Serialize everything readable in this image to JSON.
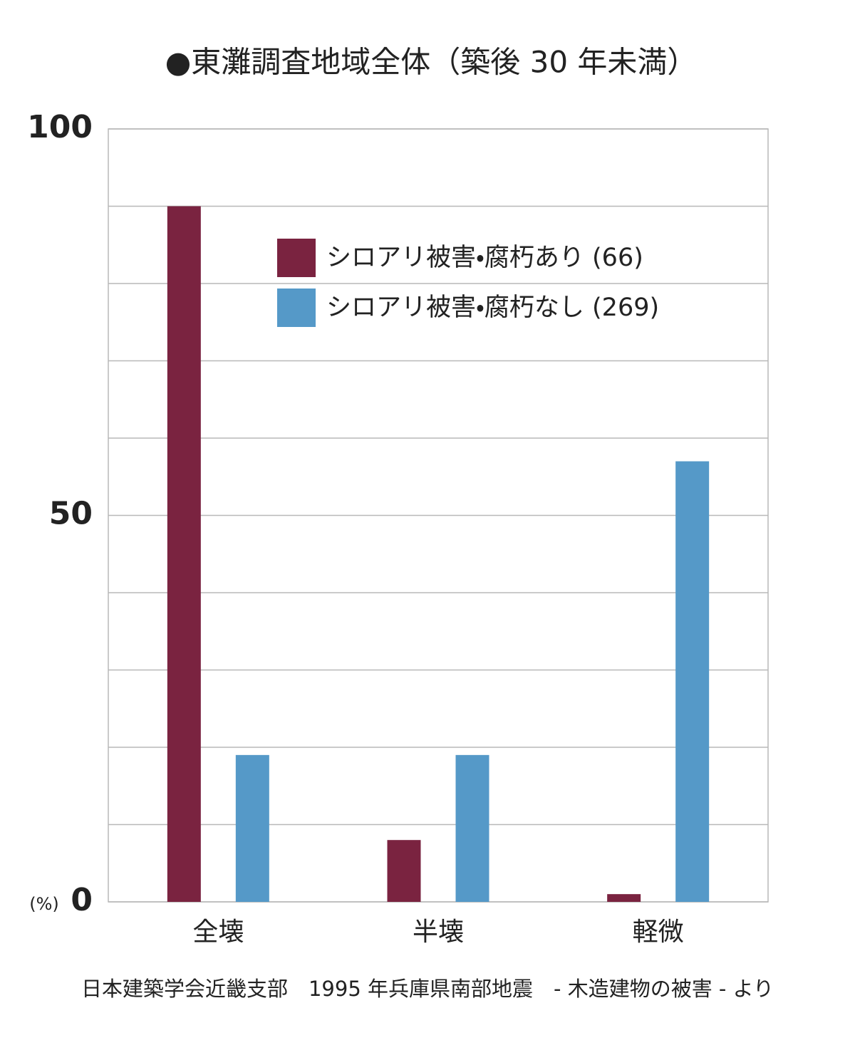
{
  "chart_data": {
    "type": "bar",
    "title": "●東灘調査地域全体（築後 30 年未満）",
    "ylabel": "(%)",
    "source": "日本建築学会近畿支部　1995 年兵庫県南部地震　- 木造建物の被害 - より",
    "categories": [
      "全壊",
      "半壊",
      "軽微"
    ],
    "series": [
      {
        "name": "シロアリ被害・腐朽あり (66)",
        "color": "#7a2340",
        "values": [
          90,
          8,
          1
        ]
      },
      {
        "name": "シロアリ被害・腐朽なし (269)",
        "color": "#5599c8",
        "values": [
          19,
          19,
          57
        ]
      }
    ],
    "ylim": [
      0,
      100
    ],
    "yticks": [
      0,
      50,
      100
    ],
    "grid_yticks": [
      10,
      20,
      30,
      40,
      60,
      70,
      80,
      90
    ],
    "grid": true,
    "legend": "top-right"
  }
}
